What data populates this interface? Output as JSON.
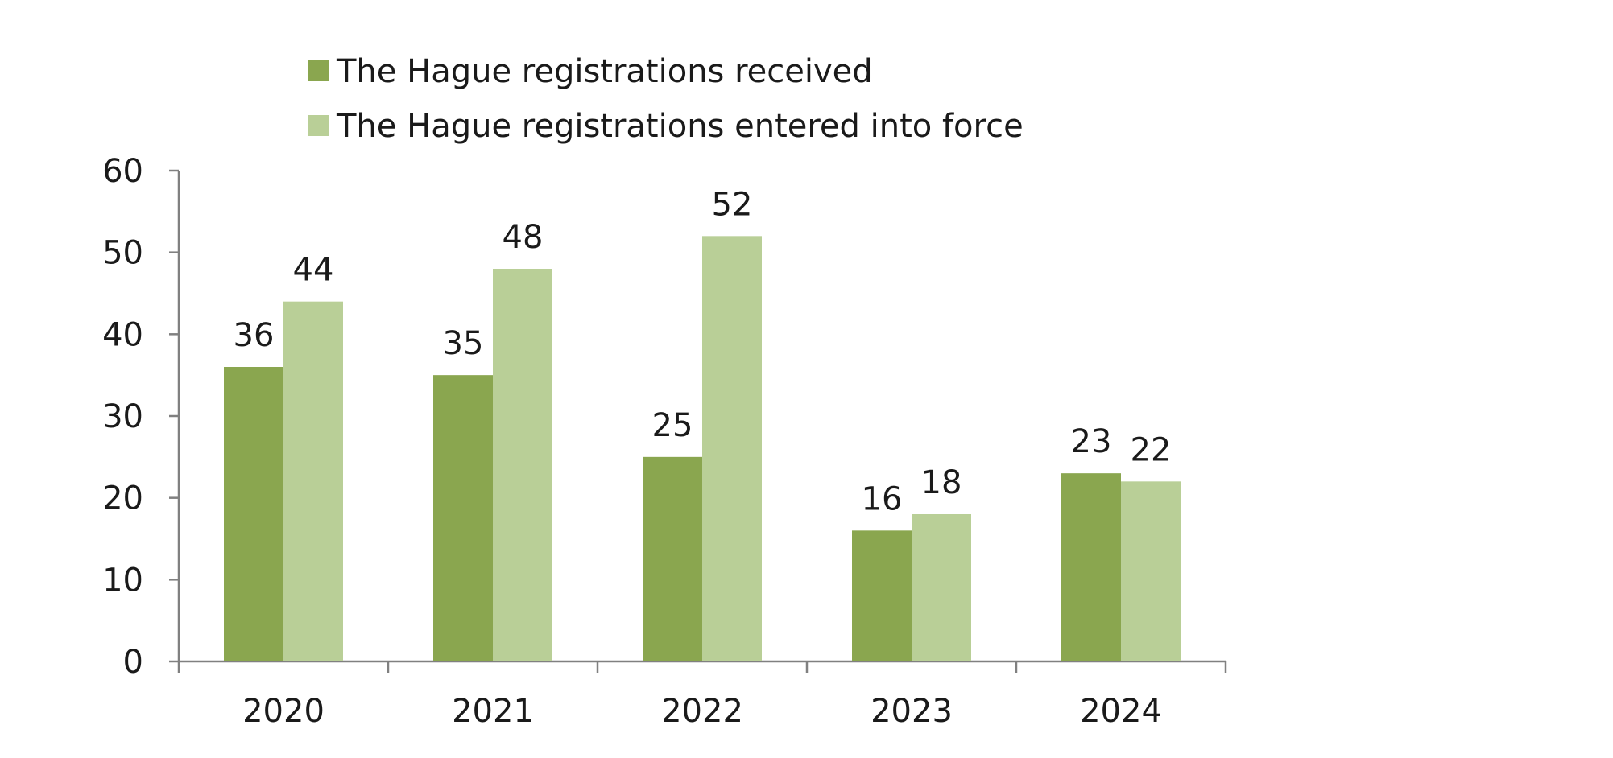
{
  "chart_data": {
    "type": "bar",
    "categories": [
      "2020",
      "2021",
      "2022",
      "2023",
      "2024"
    ],
    "series": [
      {
        "name": "The Hague registrations received",
        "values": [
          36,
          35,
          25,
          16,
          23
        ],
        "color": "#8aa64f"
      },
      {
        "name": "The Hague registrations entered into force",
        "values": [
          44,
          48,
          52,
          18,
          22
        ],
        "color": "#b9cf97"
      }
    ],
    "title": "",
    "xlabel": "",
    "ylabel": "",
    "ylim": [
      0,
      60
    ],
    "yticks": [
      "0",
      "10",
      "20",
      "30",
      "40",
      "50",
      "60"
    ],
    "grid": false,
    "legend_position": "top",
    "data_labels": true,
    "axis_color": "#808080"
  }
}
